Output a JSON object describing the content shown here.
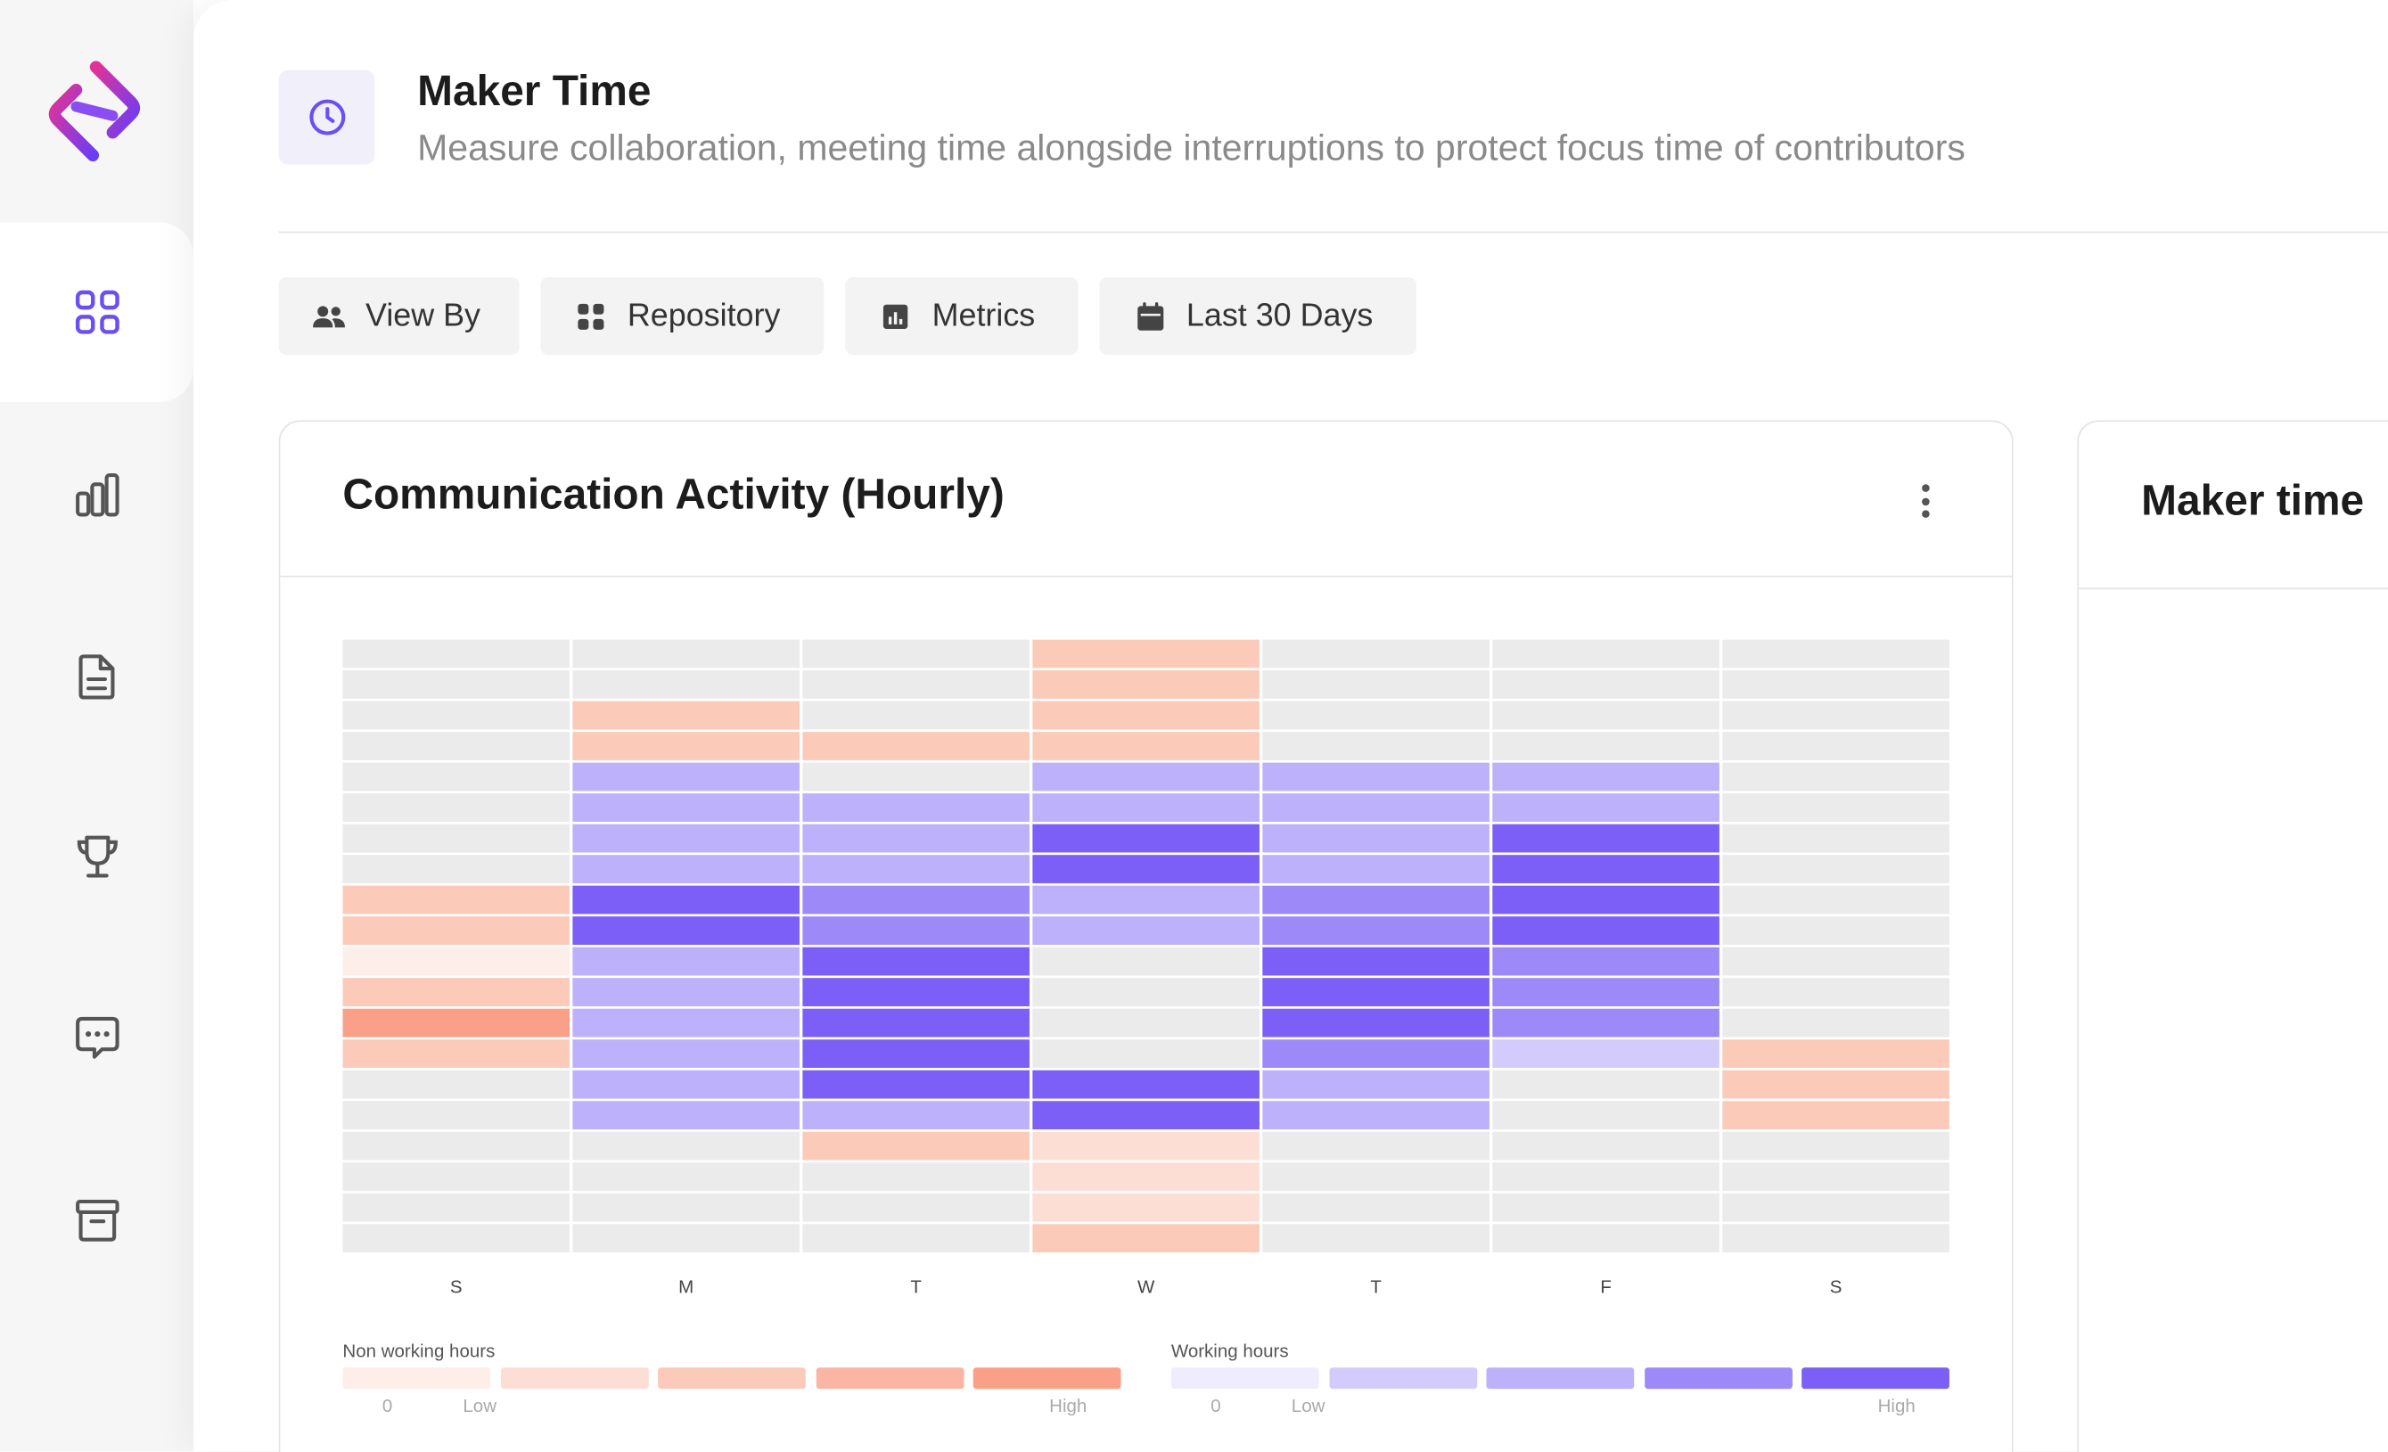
{
  "header": {
    "title": "Maker Time",
    "subtitle": "Measure collaboration, meeting time alongside interruptions to protect focus time of contributors",
    "icon": "clock-icon"
  },
  "sidebar": {
    "items": [
      {
        "icon": "dashboard-grid-icon",
        "active": true
      },
      {
        "icon": "bar-chart-icon",
        "active": false
      },
      {
        "icon": "document-icon",
        "active": false
      },
      {
        "icon": "trophy-icon",
        "active": false
      },
      {
        "icon": "chat-icon",
        "active": false
      },
      {
        "icon": "archive-icon",
        "active": false
      }
    ]
  },
  "filters": [
    {
      "label": "View By",
      "icon": "people-icon"
    },
    {
      "label": "Repository",
      "icon": "grid-icon"
    },
    {
      "label": "Metrics",
      "icon": "chart-icon"
    },
    {
      "label": "Last 30 Days",
      "icon": "calendar-icon"
    }
  ],
  "card": {
    "title": "Communication Activity (Hourly)"
  },
  "card2": {
    "title": "Maker time"
  },
  "colors": {
    "accent": "#6c4ef5",
    "cell_empty": "#ebebeb",
    "non_working": [
      "#fdeeea",
      "#fcded5",
      "#fbcab9",
      "#fbb5a3",
      "#fa9f88"
    ],
    "working": [
      "#efedfd",
      "#d3cbfc",
      "#bdb1fb",
      "#9d8af8",
      "#7b5ff6"
    ]
  },
  "chart_data": {
    "type": "heatmap",
    "days": [
      "S",
      "M",
      "T",
      "W",
      "T",
      "F",
      "S"
    ],
    "rows_per_day": 20,
    "value_encoding": "0 = no activity, 1-5 = non working hours (low to high), 6-10 = working hours (low to high)",
    "values": [
      [
        0,
        0,
        0,
        0,
        0,
        0,
        0,
        0,
        3,
        3,
        1,
        3,
        5,
        3,
        0,
        0,
        0,
        0,
        0,
        0
      ],
      [
        0,
        0,
        3,
        3,
        8,
        8,
        8,
        8,
        10,
        10,
        8,
        8,
        8,
        8,
        8,
        8,
        0,
        0,
        0,
        0
      ],
      [
        0,
        0,
        0,
        3,
        0,
        8,
        8,
        8,
        9,
        9,
        10,
        10,
        10,
        10,
        10,
        8,
        3,
        0,
        0,
        0
      ],
      [
        3,
        3,
        3,
        3,
        8,
        8,
        10,
        10,
        8,
        8,
        0,
        0,
        0,
        0,
        10,
        10,
        2,
        2,
        2,
        3
      ],
      [
        0,
        0,
        0,
        0,
        8,
        8,
        8,
        8,
        9,
        9,
        10,
        10,
        10,
        9,
        8,
        8,
        0,
        0,
        0,
        0
      ],
      [
        0,
        0,
        0,
        0,
        8,
        8,
        10,
        10,
        10,
        10,
        9,
        9,
        9,
        7,
        0,
        0,
        0,
        0,
        0,
        0
      ],
      [
        0,
        0,
        0,
        0,
        0,
        0,
        0,
        0,
        0,
        0,
        0,
        0,
        0,
        3,
        3,
        3,
        0,
        0,
        0,
        0
      ]
    ],
    "legend": [
      {
        "title": "Non working hours",
        "series": "non_working",
        "ticks": [
          "0",
          "Low",
          "High"
        ]
      },
      {
        "title": "Working hours",
        "series": "working",
        "ticks": [
          "0",
          "Low",
          "High"
        ]
      }
    ]
  }
}
